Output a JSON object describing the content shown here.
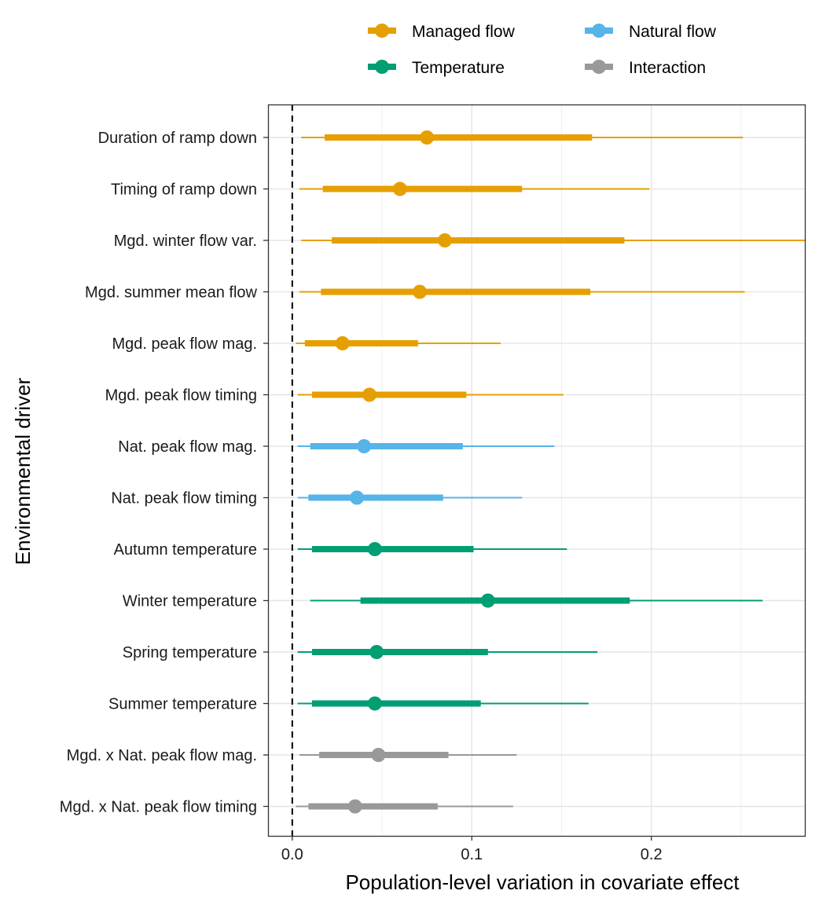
{
  "chart_data": {
    "type": "forest",
    "xlabel": "Population-level variation in covariate effect",
    "ylabel": "Environmental driver",
    "xlim": [
      -0.0135,
      0.2855
    ],
    "x_ticks": [
      0.0,
      0.1,
      0.2
    ],
    "x_tick_labels": [
      "0.0",
      "0.1",
      "0.2"
    ],
    "reference_line": 0,
    "grid": true,
    "legend_position": "top",
    "legend": [
      {
        "group": "managed",
        "label": "Managed flow",
        "color": "#E69F00"
      },
      {
        "group": "natural",
        "label": "Natural flow",
        "color": "#56B4E9"
      },
      {
        "group": "temperature",
        "label": "Temperature",
        "color": "#009E73"
      },
      {
        "group": "interaction",
        "label": "Interaction",
        "color": "#999999"
      }
    ],
    "rows": [
      {
        "label": "Duration of ramp down",
        "group": "managed",
        "median": 0.075,
        "inner": [
          0.018,
          0.167
        ],
        "outer": [
          0.005,
          0.251
        ]
      },
      {
        "label": "Timing of ramp down",
        "group": "managed",
        "median": 0.06,
        "inner": [
          0.017,
          0.128
        ],
        "outer": [
          0.004,
          0.199
        ]
      },
      {
        "label": "Mgd. winter flow var.",
        "group": "managed",
        "median": 0.085,
        "inner": [
          0.022,
          0.185
        ],
        "outer": [
          0.005,
          0.286
        ]
      },
      {
        "label": "Mgd. summer mean flow",
        "group": "managed",
        "median": 0.071,
        "inner": [
          0.016,
          0.166
        ],
        "outer": [
          0.004,
          0.252
        ]
      },
      {
        "label": "Mgd. peak flow mag.",
        "group": "managed",
        "median": 0.028,
        "inner": [
          0.007,
          0.07
        ],
        "outer": [
          0.002,
          0.116
        ]
      },
      {
        "label": "Mgd. peak flow timing",
        "group": "managed",
        "median": 0.043,
        "inner": [
          0.011,
          0.097
        ],
        "outer": [
          0.003,
          0.151
        ]
      },
      {
        "label": "Nat. peak flow mag.",
        "group": "natural",
        "median": 0.04,
        "inner": [
          0.01,
          0.095
        ],
        "outer": [
          0.003,
          0.146
        ]
      },
      {
        "label": "Nat. peak flow timing",
        "group": "natural",
        "median": 0.036,
        "inner": [
          0.009,
          0.084
        ],
        "outer": [
          0.003,
          0.128
        ]
      },
      {
        "label": "Autumn temperature",
        "group": "temperature",
        "median": 0.046,
        "inner": [
          0.011,
          0.101
        ],
        "outer": [
          0.003,
          0.153
        ]
      },
      {
        "label": "Winter temperature",
        "group": "temperature",
        "median": 0.109,
        "inner": [
          0.038,
          0.188
        ],
        "outer": [
          0.01,
          0.262
        ]
      },
      {
        "label": "Spring temperature",
        "group": "temperature",
        "median": 0.047,
        "inner": [
          0.011,
          0.109
        ],
        "outer": [
          0.003,
          0.17
        ]
      },
      {
        "label": "Summer temperature",
        "group": "temperature",
        "median": 0.046,
        "inner": [
          0.011,
          0.105
        ],
        "outer": [
          0.003,
          0.165
        ]
      },
      {
        "label": "Mgd. x Nat. peak flow mag.",
        "group": "interaction",
        "median": 0.048,
        "inner": [
          0.015,
          0.087
        ],
        "outer": [
          0.004,
          0.125
        ]
      },
      {
        "label": "Mgd. x Nat. peak flow timing",
        "group": "interaction",
        "median": 0.035,
        "inner": [
          0.009,
          0.081
        ],
        "outer": [
          0.002,
          0.123
        ]
      }
    ]
  }
}
